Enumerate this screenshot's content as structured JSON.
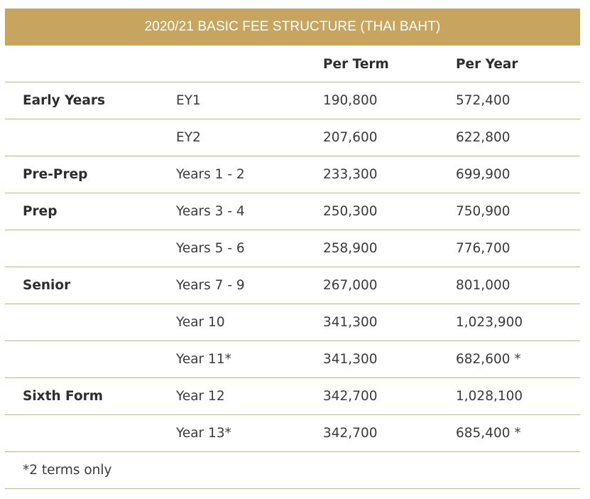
{
  "table": {
    "title": "2020/21 BASIC FEE STRUCTURE (THAI BAHT)",
    "columns": {
      "per_term": "Per Term",
      "per_year": "Per Year"
    },
    "rows": [
      {
        "group": "Early Years",
        "year": "EY1",
        "per_term": "190,800",
        "per_year": "572,400"
      },
      {
        "group": "",
        "year": "EY2",
        "per_term": "207,600",
        "per_year": "622,800"
      },
      {
        "group": "Pre-Prep",
        "year": "Years 1 - 2",
        "per_term": "233,300",
        "per_year": "699,900"
      },
      {
        "group": "Prep",
        "year": "Years 3 - 4",
        "per_term": "250,300",
        "per_year": "750,900"
      },
      {
        "group": "",
        "year": "Years 5 - 6",
        "per_term": "258,900",
        "per_year": "776,700"
      },
      {
        "group": "Senior",
        "year": "Years 7 - 9",
        "per_term": "267,000",
        "per_year": "801,000"
      },
      {
        "group": "",
        "year": "Year 10",
        "per_term": "341,300",
        "per_year": "1,023,900"
      },
      {
        "group": "",
        "year": "Year 11*",
        "per_term": "341,300",
        "per_year": "682,600 *"
      },
      {
        "group": "Sixth Form",
        "year": "Year 12",
        "per_term": "342,700",
        "per_year": "1,028,100"
      },
      {
        "group": "",
        "year": "Year 13*",
        "per_term": "342,700",
        "per_year": "685,400 *"
      }
    ],
    "footnote": "*2 terms only"
  },
  "colors": {
    "title_background": "#c8a55e",
    "divider": "#d1b37a",
    "text": "#3b3b3b"
  }
}
